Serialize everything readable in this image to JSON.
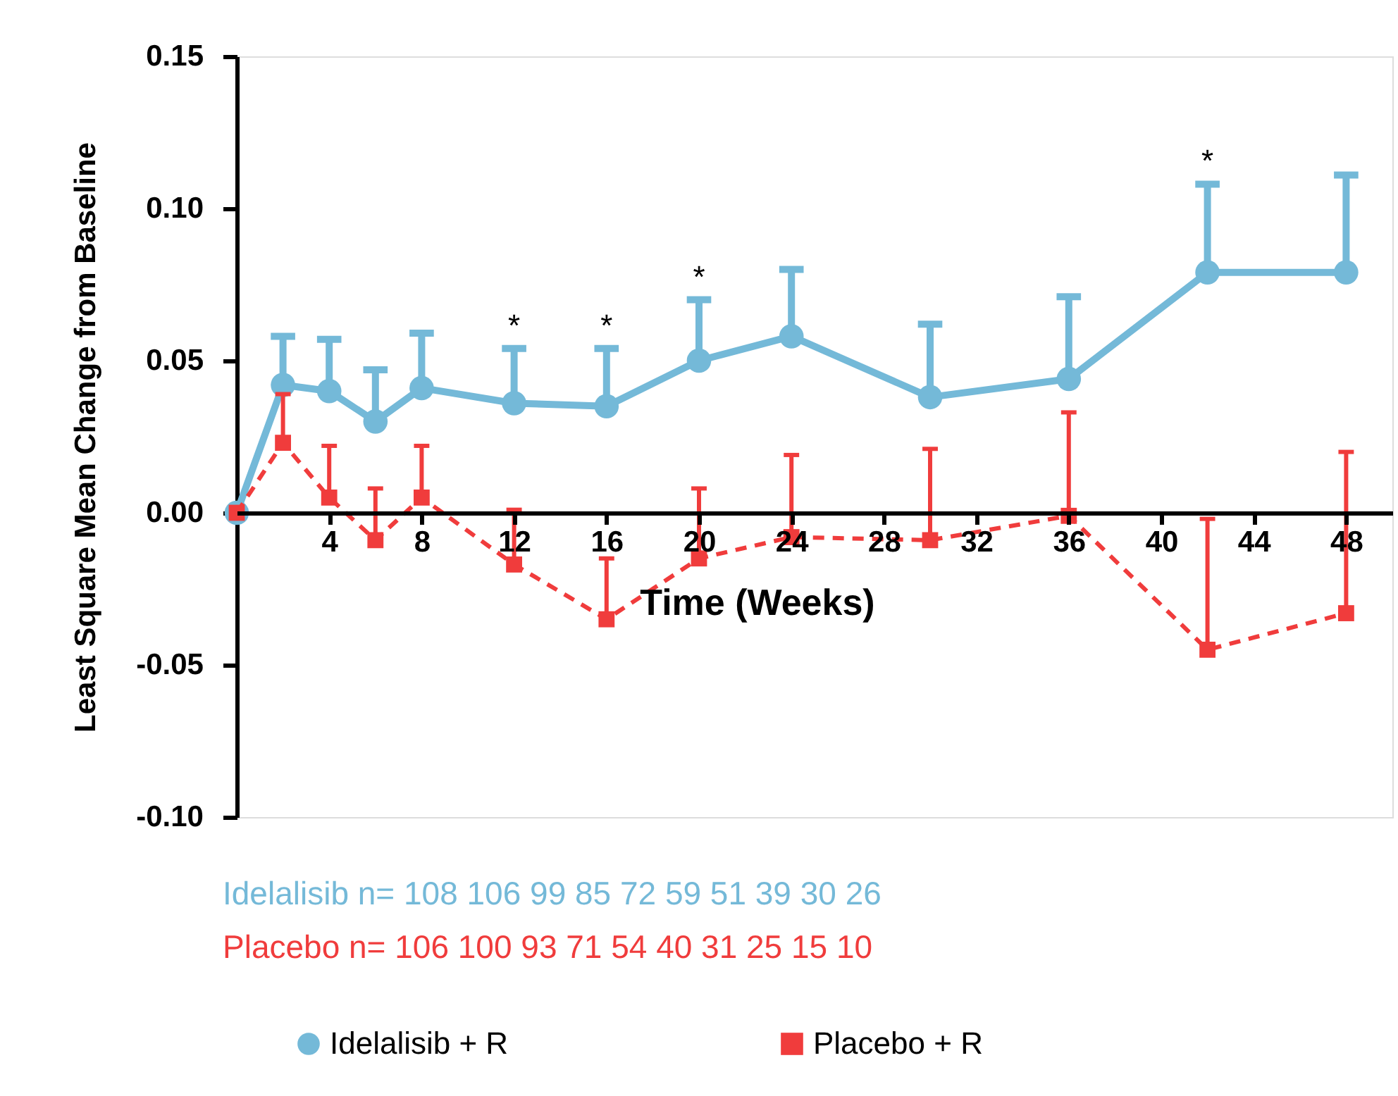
{
  "chart_data": {
    "type": "line",
    "ylabel": "Least Square Mean Change from Baseline",
    "xlabel": "Time (Weeks)",
    "x": [
      0,
      2,
      4,
      6,
      8,
      12,
      16,
      20,
      24,
      30,
      36,
      42,
      48
    ],
    "series": [
      {
        "name": "Idelalisib + R",
        "color": "#74b9d8",
        "marker": "circle",
        "line_style": "solid",
        "values": [
          0,
          0.042,
          0.04,
          0.03,
          0.041,
          0.036,
          0.035,
          0.05,
          0.058,
          0.038,
          0.044,
          0.079,
          0.079
        ],
        "errors": [
          null,
          [
            0.042,
            0.058
          ],
          [
            0.04,
            0.057
          ],
          [
            0.03,
            0.047
          ],
          [
            0.041,
            0.059
          ],
          [
            0.036,
            0.054
          ],
          [
            0.035,
            0.054
          ],
          [
            0.05,
            0.07
          ],
          [
            0.058,
            0.08
          ],
          [
            0.038,
            0.062
          ],
          [
            0.044,
            0.071
          ],
          [
            0.079,
            0.108
          ],
          [
            0.079,
            0.111
          ]
        ]
      },
      {
        "name": "Placebo + R",
        "color": "#f03c3c",
        "marker": "square",
        "line_style": "dashed",
        "values": [
          0,
          0.023,
          0.005,
          -0.009,
          0.005,
          -0.017,
          -0.035,
          -0.015,
          -0.008,
          -0.009,
          -0.001,
          -0.045,
          -0.033
        ],
        "errors": [
          null,
          [
            0.023,
            0.039
          ],
          [
            0.005,
            0.022
          ],
          [
            -0.009,
            0.008
          ],
          [
            0.005,
            0.022
          ],
          [
            -0.017,
            0.001
          ],
          [
            -0.035,
            -0.015
          ],
          [
            -0.015,
            0.008
          ],
          [
            -0.008,
            0.019
          ],
          [
            -0.009,
            0.021
          ],
          [
            -0.001,
            0.033
          ],
          [
            -0.045,
            -0.002
          ],
          [
            -0.033,
            0.02
          ]
        ]
      }
    ],
    "xlim": [
      0,
      50
    ],
    "xticks": [
      4,
      8,
      12,
      16,
      20,
      24,
      28,
      32,
      36,
      40,
      44,
      48
    ],
    "ylim": [
      -0.1,
      0.15
    ],
    "yticks": [
      {
        "value": -0.1,
        "label": "-0.10"
      },
      {
        "value": -0.05,
        "label": "-0.05"
      },
      {
        "value": 0,
        "label": "0.00"
      },
      {
        "value": 0.05,
        "label": "0.05"
      },
      {
        "value": 0.1,
        "label": "0.10"
      },
      {
        "value": 0.15,
        "label": "0.15"
      }
    ],
    "grid": false,
    "legend": "bottom",
    "annotations": [
      {
        "text": "*",
        "x": 12,
        "y": 0.054
      },
      {
        "text": "*",
        "x": 16,
        "y": 0.054
      },
      {
        "text": "*",
        "x": 20,
        "y": 0.07
      },
      {
        "text": "*",
        "x": 42,
        "y": 0.108
      },
      "Idelalisib n= 108 106 99 85 72 59 51 39 30 26",
      "Placebo n= 106 100 93 71 54 40 31 25 15 10"
    ]
  }
}
